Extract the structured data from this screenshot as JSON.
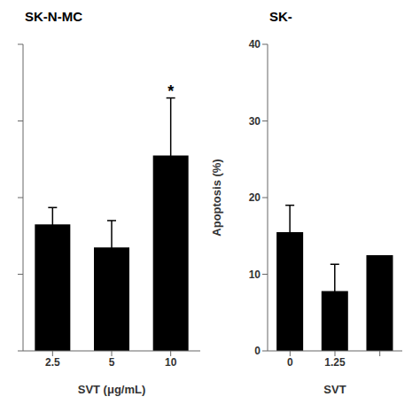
{
  "chart_data": [
    {
      "type": "bar",
      "title": "SK-N-MC",
      "categories": [
        "2.5",
        "5",
        "10"
      ],
      "values": [
        16.5,
        13.5,
        25.5
      ],
      "errors": [
        2.2,
        3.5,
        7.5
      ],
      "x_label": "SVT (μg/mL)",
      "annotations": [
        {
          "category": "10",
          "text": "*"
        }
      ],
      "color": "#000000",
      "ylim": [
        0,
        40
      ],
      "yticks": [
        0,
        10,
        20,
        30,
        40
      ],
      "tick_labels": "x"
    },
    {
      "type": "bar",
      "title": "SK-",
      "categories": [
        "0",
        "1.25",
        null
      ],
      "values": [
        15.5,
        7.8,
        12.5
      ],
      "errors": [
        3.5,
        3.5,
        0
      ],
      "x_label": "SVT",
      "y_label": "Apoptosis (%)",
      "color": "#000000",
      "ylim": [
        0,
        40
      ],
      "yticks": [
        0,
        10,
        20,
        30,
        40
      ]
    }
  ]
}
